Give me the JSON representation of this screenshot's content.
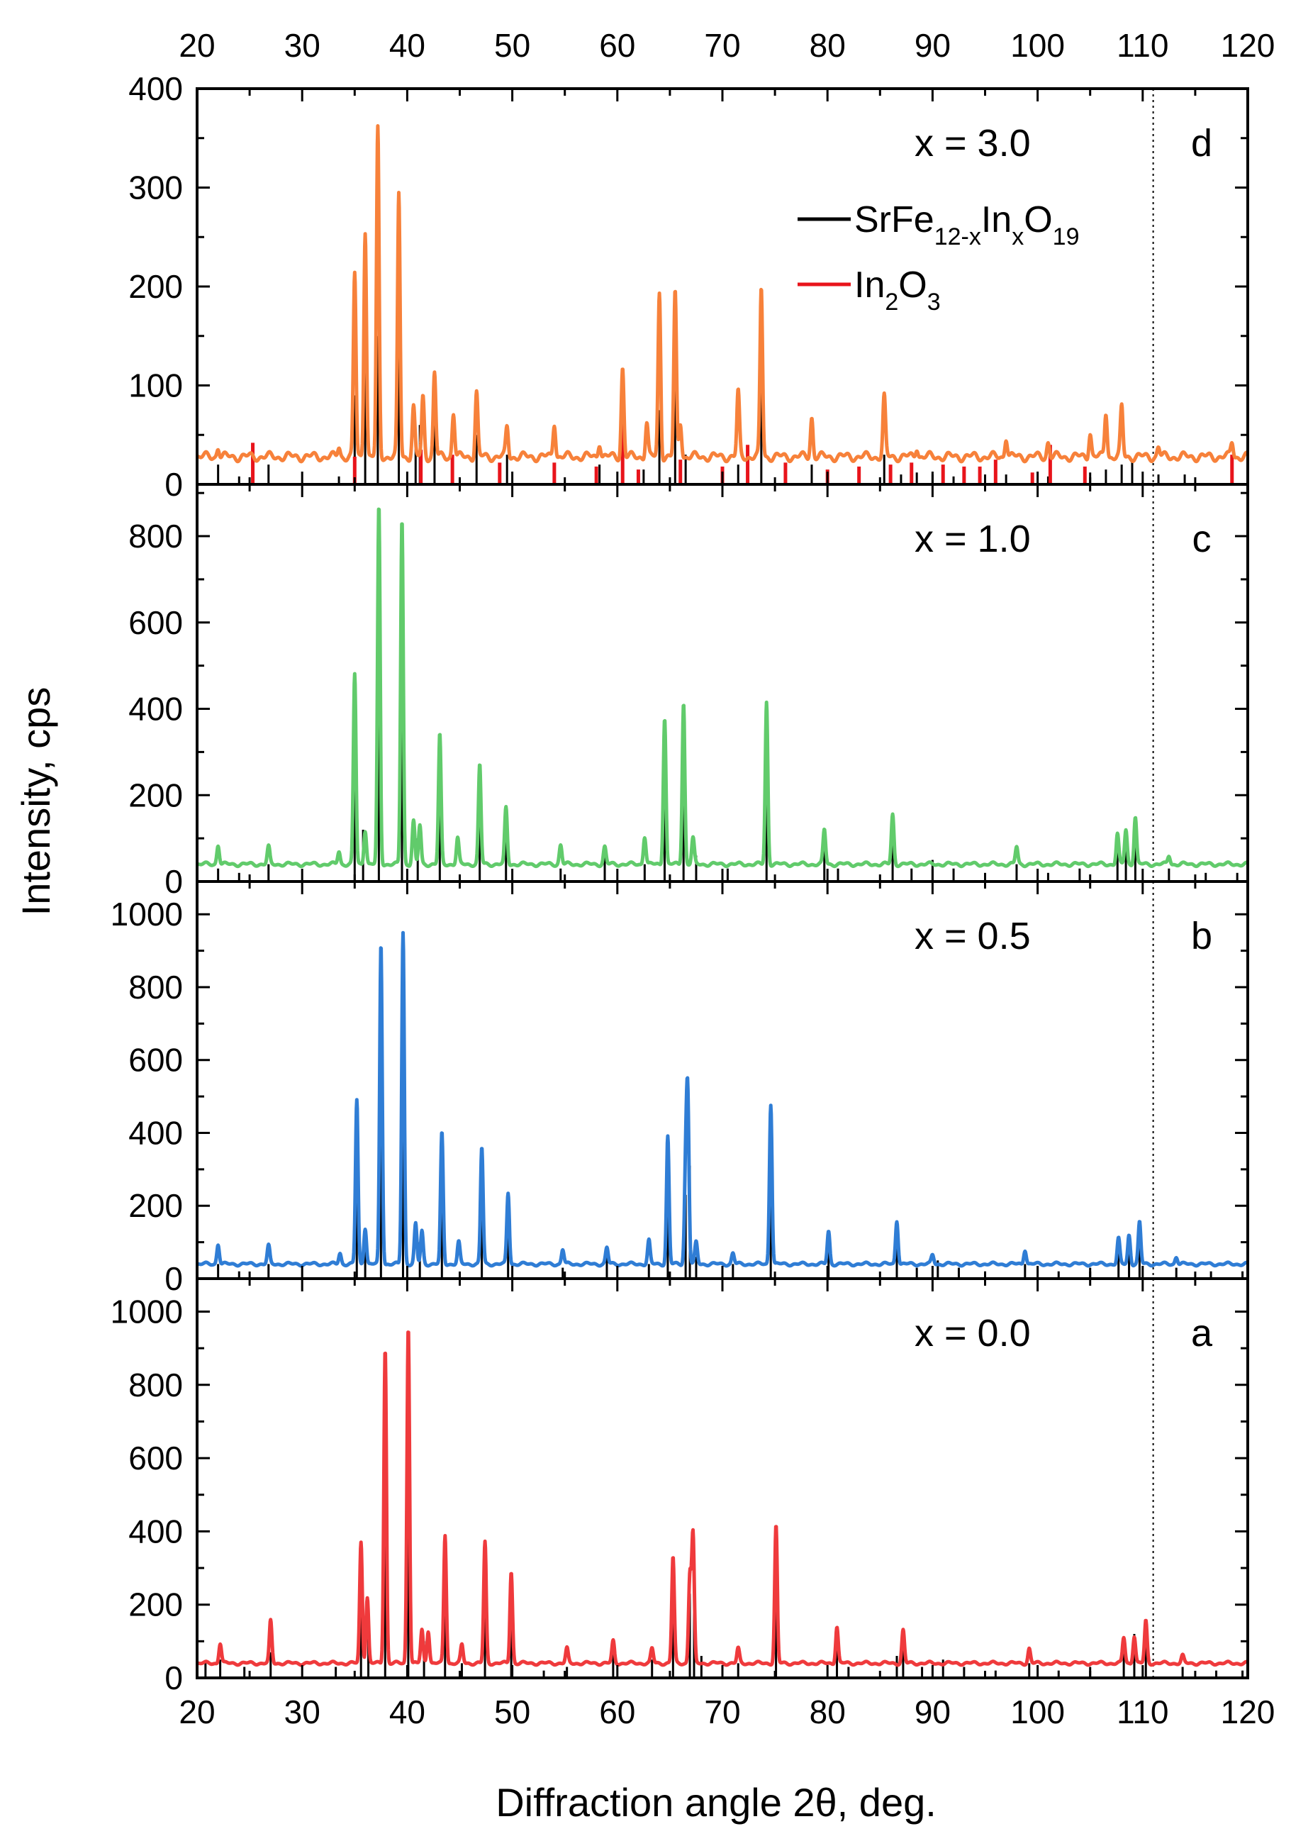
{
  "chart_data": {
    "type": "line",
    "xlabel": "Diffraction angle 2θ, deg.",
    "ylabel": "Intensity, cps",
    "xlim": [
      20,
      120
    ],
    "x_ticks": [
      20,
      30,
      40,
      50,
      60,
      70,
      80,
      90,
      100,
      110,
      120
    ],
    "reference_line_x": 111,
    "legend": [
      {
        "label": "SrFe",
        "sub1": "12-x",
        "mid": "In",
        "sub2": "x",
        "tail": "O",
        "sub3": "19",
        "color": "#000000"
      },
      {
        "label": "In",
        "sub1": "2",
        "mid": "O",
        "sub2": "3",
        "color": "#e8141b"
      }
    ],
    "panels": [
      {
        "letter": "d",
        "composition": "x = 3.0",
        "color": "#f7813a",
        "ylim": [
          0,
          400
        ],
        "yticks": [
          0,
          100,
          200,
          300,
          400
        ],
        "baseline": 28,
        "peaks": [
          [
            22,
            10
          ],
          [
            33.5,
            10
          ],
          [
            35,
            185
          ],
          [
            36,
            230
          ],
          [
            37.2,
            330
          ],
          [
            39.2,
            265
          ],
          [
            40.6,
            50
          ],
          [
            41.5,
            60
          ],
          [
            42.6,
            85
          ],
          [
            44.4,
            45
          ],
          [
            46.6,
            65
          ],
          [
            49.5,
            30
          ],
          [
            54,
            35
          ],
          [
            58.3,
            15
          ],
          [
            60.5,
            90
          ],
          [
            62.8,
            35
          ],
          [
            64,
            165
          ],
          [
            65.5,
            165
          ],
          [
            66,
            35
          ],
          [
            71.5,
            65
          ],
          [
            73.7,
            170
          ],
          [
            78.5,
            40
          ],
          [
            85.4,
            60
          ],
          [
            88.5,
            10
          ],
          [
            97,
            20
          ],
          [
            101,
            15
          ],
          [
            105,
            25
          ],
          [
            106.5,
            45
          ],
          [
            108,
            50
          ],
          [
            111.5,
            10
          ],
          [
            118.5,
            15
          ]
        ],
        "ref_black": [
          [
            22,
            20
          ],
          [
            24,
            8
          ],
          [
            26.8,
            20
          ],
          [
            33.5,
            8
          ],
          [
            35,
            90
          ],
          [
            36,
            180
          ],
          [
            37.2,
            150
          ],
          [
            39.2,
            165
          ],
          [
            40.8,
            40
          ],
          [
            41.2,
            60
          ],
          [
            42.6,
            60
          ],
          [
            46.6,
            50
          ],
          [
            49.5,
            30
          ],
          [
            54,
            10
          ],
          [
            58.3,
            20
          ],
          [
            60.5,
            20
          ],
          [
            62.5,
            15
          ],
          [
            64,
            75
          ],
          [
            65.5,
            95
          ],
          [
            66.5,
            30
          ],
          [
            71.5,
            20
          ],
          [
            73.7,
            100
          ],
          [
            78.5,
            20
          ],
          [
            80,
            10
          ],
          [
            85.4,
            30
          ],
          [
            87,
            10
          ],
          [
            88.5,
            12
          ],
          [
            90,
            10
          ],
          [
            92,
            8
          ],
          [
            95,
            10
          ],
          [
            97,
            10
          ],
          [
            101,
            8
          ],
          [
            105,
            12
          ],
          [
            106.5,
            15
          ],
          [
            108,
            20
          ],
          [
            109,
            25
          ],
          [
            111.5,
            10
          ],
          [
            114,
            10
          ],
          [
            118.5,
            8
          ]
        ],
        "ref_red": [
          [
            25.3,
            42
          ],
          [
            35,
            28
          ],
          [
            41.3,
            35
          ],
          [
            44.3,
            30
          ],
          [
            48.8,
            22
          ],
          [
            54,
            22
          ],
          [
            58,
            18
          ],
          [
            60.5,
            85
          ],
          [
            62,
            15
          ],
          [
            66,
            25
          ],
          [
            70,
            18
          ],
          [
            72.4,
            40
          ],
          [
            76,
            22
          ],
          [
            80,
            15
          ],
          [
            83,
            18
          ],
          [
            86,
            20
          ],
          [
            88,
            22
          ],
          [
            91,
            20
          ],
          [
            93,
            18
          ],
          [
            94.5,
            18
          ],
          [
            96,
            25
          ],
          [
            99.5,
            12
          ],
          [
            101.2,
            40
          ],
          [
            104.5,
            18
          ],
          [
            118.5,
            30
          ]
        ]
      },
      {
        "letter": "c",
        "composition": "x = 1.0",
        "color": "#61cb6b",
        "ylim": [
          0,
          920
        ],
        "yticks": [
          0,
          200,
          400,
          600,
          800
        ],
        "baseline": 40,
        "peaks": [
          [
            22,
            45
          ],
          [
            26.8,
            40
          ],
          [
            33.5,
            30
          ],
          [
            35,
            440
          ],
          [
            36,
            80
          ],
          [
            37.3,
            830
          ],
          [
            39.5,
            800
          ],
          [
            40.6,
            100
          ],
          [
            41.2,
            90
          ],
          [
            43.1,
            300
          ],
          [
            44.8,
            60
          ],
          [
            46.9,
            230
          ],
          [
            49.4,
            130
          ],
          [
            54.6,
            45
          ],
          [
            58.8,
            40
          ],
          [
            62.6,
            65
          ],
          [
            64.5,
            340
          ],
          [
            66.3,
            375
          ],
          [
            67.2,
            60
          ],
          [
            74.2,
            375
          ],
          [
            79.7,
            80
          ],
          [
            86.2,
            115
          ],
          [
            98,
            40
          ],
          [
            107.6,
            70
          ],
          [
            108.4,
            80
          ],
          [
            109.3,
            110
          ],
          [
            112.5,
            20
          ]
        ],
        "ref_black": [
          [
            22,
            30
          ],
          [
            24,
            20
          ],
          [
            26.8,
            40
          ],
          [
            35,
            290
          ],
          [
            35.8,
            120
          ],
          [
            37.3,
            520
          ],
          [
            39.5,
            590
          ],
          [
            41,
            100
          ],
          [
            43.1,
            280
          ],
          [
            46.9,
            230
          ],
          [
            49.4,
            170
          ],
          [
            54.6,
            30
          ],
          [
            58.8,
            60
          ],
          [
            62.6,
            40
          ],
          [
            64.5,
            250
          ],
          [
            66.3,
            310
          ],
          [
            67.5,
            60
          ],
          [
            70.5,
            30
          ],
          [
            74.2,
            340
          ],
          [
            79.7,
            110
          ],
          [
            81,
            30
          ],
          [
            86.2,
            100
          ],
          [
            88,
            30
          ],
          [
            90,
            50
          ],
          [
            92,
            30
          ],
          [
            95,
            20
          ],
          [
            98,
            40
          ],
          [
            101,
            20
          ],
          [
            104,
            30
          ],
          [
            107.6,
            80
          ],
          [
            108.4,
            100
          ],
          [
            109.3,
            130
          ],
          [
            112.5,
            30
          ],
          [
            116,
            20
          ],
          [
            119,
            20
          ]
        ],
        "ref_red": []
      },
      {
        "letter": "b",
        "composition": "x = 0.5",
        "color": "#2f7dd5",
        "ylim": [
          0,
          1090
        ],
        "yticks": [
          0,
          200,
          400,
          600,
          800,
          1000
        ],
        "baseline": 40,
        "peaks": [
          [
            22,
            55
          ],
          [
            26.8,
            50
          ],
          [
            33.6,
            30
          ],
          [
            35.2,
            450
          ],
          [
            36,
            100
          ],
          [
            37.5,
            880
          ],
          [
            39.6,
            910
          ],
          [
            40.8,
            110
          ],
          [
            41.4,
            90
          ],
          [
            43.3,
            360
          ],
          [
            44.9,
            60
          ],
          [
            47.1,
            320
          ],
          [
            49.6,
            195
          ],
          [
            54.8,
            40
          ],
          [
            59,
            45
          ],
          [
            63,
            65
          ],
          [
            64.8,
            350
          ],
          [
            66.5,
            240
          ],
          [
            66.7,
            440
          ],
          [
            67.5,
            60
          ],
          [
            71,
            30
          ],
          [
            74.6,
            440
          ],
          [
            80.1,
            90
          ],
          [
            86.6,
            120
          ],
          [
            90,
            25
          ],
          [
            98.8,
            40
          ],
          [
            107.7,
            70
          ],
          [
            108.7,
            80
          ],
          [
            109.7,
            115
          ],
          [
            113.2,
            20
          ]
        ],
        "ref_black": [
          [
            22,
            40
          ],
          [
            24,
            20
          ],
          [
            26.8,
            40
          ],
          [
            35.2,
            290
          ],
          [
            36,
            110
          ],
          [
            37.5,
            530
          ],
          [
            39.6,
            600
          ],
          [
            41.2,
            100
          ],
          [
            43.3,
            260
          ],
          [
            47.1,
            250
          ],
          [
            49.6,
            180
          ],
          [
            54.8,
            30
          ],
          [
            59,
            60
          ],
          [
            63,
            40
          ],
          [
            64.8,
            250
          ],
          [
            66.5,
            230
          ],
          [
            66.9,
            310
          ],
          [
            67.5,
            60
          ],
          [
            71,
            40
          ],
          [
            74.6,
            340
          ],
          [
            80.1,
            120
          ],
          [
            86.6,
            110
          ],
          [
            88.5,
            30
          ],
          [
            90.5,
            50
          ],
          [
            92.5,
            30
          ],
          [
            95,
            20
          ],
          [
            98.8,
            40
          ],
          [
            102,
            20
          ],
          [
            105,
            30
          ],
          [
            107.7,
            100
          ],
          [
            108.7,
            120
          ],
          [
            109.7,
            140
          ],
          [
            113.2,
            30
          ],
          [
            116.5,
            20
          ],
          [
            119.5,
            20
          ]
        ],
        "ref_red": []
      },
      {
        "letter": "a",
        "composition": "x = 0.0",
        "color": "#ef3a3c",
        "ylim": [
          0,
          1090
        ],
        "yticks": [
          0,
          200,
          400,
          600,
          800,
          1000
        ],
        "baseline": 40,
        "peaks": [
          [
            22.2,
            55
          ],
          [
            27,
            115
          ],
          [
            35.6,
            330
          ],
          [
            36.2,
            180
          ],
          [
            37.9,
            860
          ],
          [
            40.1,
            920
          ],
          [
            41.4,
            90
          ],
          [
            42,
            90
          ],
          [
            43.6,
            350
          ],
          [
            45.2,
            50
          ],
          [
            47.4,
            330
          ],
          [
            49.9,
            250
          ],
          [
            55.2,
            40
          ],
          [
            59.6,
            60
          ],
          [
            63.3,
            40
          ],
          [
            65.3,
            290
          ],
          [
            66.9,
            240
          ],
          [
            67.2,
            350
          ],
          [
            71.5,
            40
          ],
          [
            75.1,
            375
          ],
          [
            80.9,
            100
          ],
          [
            87.2,
            90
          ],
          [
            99.2,
            40
          ],
          [
            108.2,
            70
          ],
          [
            109.2,
            75
          ],
          [
            110.3,
            115
          ],
          [
            113.8,
            20
          ]
        ],
        "ref_black": [
          [
            20.8,
            40
          ],
          [
            22.2,
            50
          ],
          [
            24.5,
            30
          ],
          [
            27,
            70
          ],
          [
            33.2,
            30
          ],
          [
            35.6,
            290
          ],
          [
            36.3,
            130
          ],
          [
            37.9,
            540
          ],
          [
            40.1,
            600
          ],
          [
            41.6,
            100
          ],
          [
            43.6,
            270
          ],
          [
            45.2,
            40
          ],
          [
            47.4,
            250
          ],
          [
            49.9,
            200
          ],
          [
            53,
            20
          ],
          [
            55.2,
            30
          ],
          [
            59.6,
            70
          ],
          [
            63.3,
            50
          ],
          [
            65.3,
            250
          ],
          [
            66.9,
            230
          ],
          [
            67.3,
            310
          ],
          [
            68,
            60
          ],
          [
            71.5,
            40
          ],
          [
            75.1,
            340
          ],
          [
            80.9,
            120
          ],
          [
            82,
            30
          ],
          [
            86.6,
            60
          ],
          [
            87.2,
            110
          ],
          [
            89,
            30
          ],
          [
            91,
            50
          ],
          [
            93,
            30
          ],
          [
            96,
            20
          ],
          [
            99.2,
            40
          ],
          [
            102,
            20
          ],
          [
            105,
            30
          ],
          [
            108.2,
            90
          ],
          [
            109.2,
            120
          ],
          [
            110.3,
            130
          ],
          [
            113.8,
            30
          ],
          [
            117,
            20
          ],
          [
            119.5,
            20
          ]
        ],
        "ref_red": []
      }
    ]
  }
}
